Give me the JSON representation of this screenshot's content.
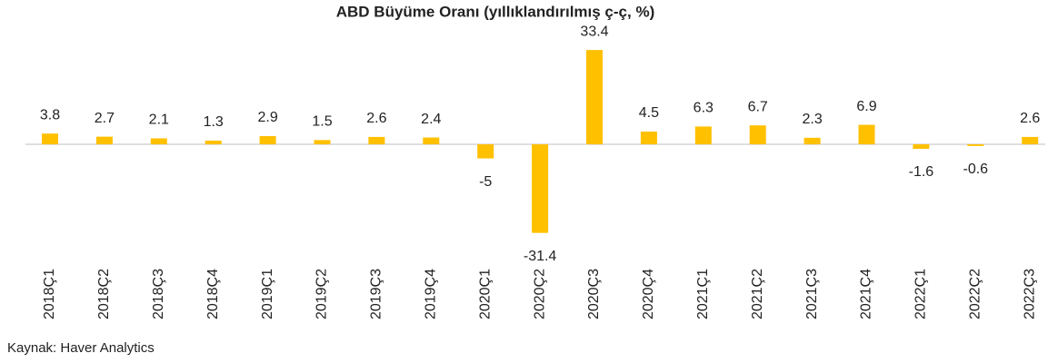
{
  "chart_data": {
    "type": "bar",
    "title": "ABD Büyüme Oranı (yıllıklandırılmış ç-ç, %)",
    "categories": [
      "2018Ç1",
      "2018Ç2",
      "2018Ç3",
      "2018Ç4",
      "2019Ç1",
      "2019Ç2",
      "2019Ç3",
      "2019Ç4",
      "2020Ç1",
      "2020Ç2",
      "2020Ç3",
      "2020Ç4",
      "2021Ç1",
      "2021Ç2",
      "2021Ç3",
      "2021Ç4",
      "2022Ç1",
      "2022Ç2",
      "2022Ç3"
    ],
    "values": [
      3.8,
      2.7,
      2.1,
      1.3,
      2.9,
      1.5,
      2.6,
      2.4,
      -5,
      -31.4,
      33.4,
      4.5,
      6.3,
      6.7,
      2.3,
      6.9,
      -1.6,
      -0.6,
      2.6
    ],
    "color": "#ffc000",
    "source": "Kaynak: Haver Analytics"
  }
}
